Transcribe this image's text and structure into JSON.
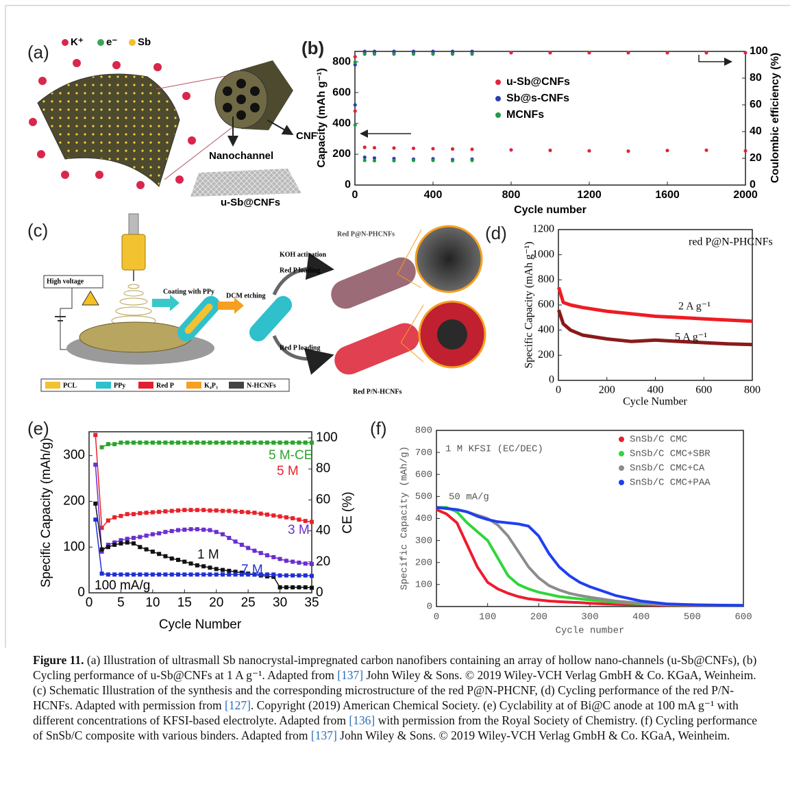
{
  "panels": {
    "a": {
      "label": "(a)",
      "legend": [
        "K⁺",
        "e⁻",
        "Sb"
      ],
      "labels": [
        "CNF",
        "Nanochannel",
        "u-Sb@CNFs"
      ]
    },
    "c": {
      "label": "(c)",
      "labels": [
        "High voltage",
        "Coating with PPy",
        "DCM etching",
        "KOH activation",
        "Red P loading",
        "Red P@N-PHCNFs",
        "Red P loading",
        "Red P/N-HCNFs"
      ],
      "legend": [
        "PCL",
        "PPy",
        "Red P",
        "K₄P₃",
        "N-HCNFs"
      ]
    }
  },
  "chart_data": [
    {
      "type": "scatter",
      "label": "(b)",
      "x_label": "Cycle number",
      "y_label": "Capacity (mAh g⁻¹)",
      "y2_label": "Coulombic efficiency (%)",
      "x": [
        1,
        50,
        100,
        200,
        300,
        400,
        500,
        600,
        800,
        1000,
        1200,
        1400,
        1600,
        1800,
        2000
      ],
      "xlim": [
        0,
        2000
      ],
      "xticks": [
        0,
        400,
        800,
        1200,
        1600,
        2000
      ],
      "ylim": [
        0,
        867
      ],
      "yticks": [
        0,
        200,
        400,
        600,
        800
      ],
      "y2lim": [
        0,
        100
      ],
      "y2ticks": [
        0,
        20,
        40,
        60,
        80,
        100
      ],
      "legend": "center",
      "grid": false,
      "series": [
        {
          "name": "u-Sb@CNFs",
          "color": "#e0253f",
          "values": [
            480,
            245,
            242,
            240,
            238,
            236,
            234,
            232,
            228,
            225,
            222,
            220,
            224,
            226,
            222
          ],
          "ce_values": [
            96,
            99,
            99,
            99,
            99,
            99,
            99,
            99,
            99,
            99,
            99,
            99,
            99,
            99,
            99
          ]
        },
        {
          "name": "Sb@s-CNFs",
          "color": "#2d3fa8",
          "values": [
            520,
            180,
            175,
            172,
            168,
            170,
            165,
            168,
            null,
            null,
            null,
            null,
            null,
            null,
            null
          ],
          "ce_values": [
            90,
            100,
            100,
            100,
            100,
            100,
            100,
            100,
            null,
            null,
            null,
            null,
            null,
            null,
            null
          ]
        },
        {
          "name": "MCNFs",
          "color": "#1f9a4a",
          "values": [
            390,
            160,
            158,
            158,
            160,
            160,
            158,
            160,
            null,
            null,
            null,
            null,
            null,
            null,
            null
          ],
          "ce_values": [
            92,
            98,
            98,
            98,
            98,
            98,
            98,
            98,
            null,
            null,
            null,
            null,
            null,
            null,
            null
          ]
        }
      ]
    },
    {
      "type": "line",
      "label": "(d)",
      "x_label": "Cycle Number",
      "y_label": "Specific Capacity (mAh g⁻¹)",
      "annotations": [
        "red P@N-PHCNFs"
      ],
      "x": [
        1,
        20,
        50,
        100,
        200,
        300,
        400,
        500,
        600,
        700,
        800
      ],
      "xlim": [
        0,
        800
      ],
      "xticks": [
        0,
        200,
        400,
        600,
        800
      ],
      "ylim": [
        0,
        1200
      ],
      "yticks": [
        0,
        200,
        400,
        600,
        800,
        1000,
        1200
      ],
      "legend": "inline",
      "grid": false,
      "series": [
        {
          "name": "2 A g⁻¹",
          "color": "#ee1c24",
          "values": [
            740,
            620,
            600,
            580,
            550,
            530,
            510,
            500,
            490,
            480,
            470
          ]
        },
        {
          "name": "5 A g⁻¹",
          "color": "#8b1a1a",
          "values": [
            560,
            450,
            400,
            360,
            330,
            310,
            320,
            310,
            300,
            290,
            285
          ]
        }
      ]
    },
    {
      "type": "line",
      "marker": "square",
      "label": "(e)",
      "x_label": "Cycle Number",
      "y_label": "Specific Capacity (mAh/g)",
      "y2_label": "CE (%)",
      "annotations": [
        "100 mA/g"
      ],
      "x": [
        1,
        2,
        3,
        4,
        5,
        6,
        7,
        8,
        9,
        10,
        11,
        12,
        13,
        14,
        15,
        16,
        17,
        18,
        19,
        20,
        21,
        22,
        23,
        24,
        25,
        26,
        27,
        28,
        29,
        30,
        31,
        32,
        33,
        34,
        35
      ],
      "xlim": [
        0,
        35
      ],
      "xticks": [
        0,
        5,
        10,
        15,
        20,
        25,
        30,
        35
      ],
      "ylim": [
        0,
        352
      ],
      "yticks": [
        0,
        100,
        200,
        300
      ],
      "y2lim": [
        0,
        104
      ],
      "y2ticks": [
        0,
        20,
        40,
        60,
        80,
        100
      ],
      "legend": "inline",
      "grid": false,
      "series": [
        {
          "name": "5 M",
          "color": "#e8222a",
          "values": [
            345,
            142,
            158,
            165,
            168,
            172,
            172,
            174,
            175,
            176,
            177,
            178,
            179,
            180,
            181,
            181,
            181,
            181,
            180,
            180,
            179,
            179,
            178,
            177,
            176,
            175,
            173,
            171,
            169,
            167,
            165,
            163,
            160,
            157,
            155
          ]
        },
        {
          "name": "3 M",
          "color": "#6a2fd0",
          "values": [
            280,
            90,
            105,
            110,
            115,
            118,
            120,
            122,
            125,
            128,
            130,
            133,
            135,
            137,
            138,
            139,
            139,
            138,
            137,
            133,
            128,
            120,
            112,
            105,
            98,
            92,
            87,
            82,
            78,
            74,
            70,
            68,
            66,
            64,
            63
          ]
        },
        {
          "name": "1 M",
          "color": "#111111",
          "values": [
            195,
            95,
            100,
            105,
            108,
            110,
            108,
            100,
            95,
            90,
            85,
            80,
            75,
            72,
            68,
            64,
            60,
            58,
            55,
            52,
            50,
            48,
            46,
            44,
            42,
            40,
            38,
            36,
            35,
            12,
            12,
            12,
            12,
            12,
            11
          ]
        },
        {
          "name": "7 M",
          "color": "#1f2fd6",
          "values": [
            160,
            42,
            40,
            40,
            40,
            40,
            40,
            40,
            40,
            40,
            40,
            40,
            40,
            40,
            40,
            40,
            40,
            40,
            40,
            40,
            40,
            40,
            40,
            40,
            40,
            40,
            40,
            40,
            40,
            38,
            38,
            38,
            38,
            38,
            37
          ]
        },
        {
          "name": "5 M-CE",
          "color": "#2aa52a",
          "axis": "y2",
          "values": [
            null,
            94,
            96,
            96,
            97,
            97,
            97,
            97,
            97,
            97,
            97,
            97,
            97,
            97,
            97,
            97,
            97,
            97,
            97,
            97,
            97,
            97,
            97,
            97,
            97,
            97,
            97,
            97,
            97,
            97,
            97,
            97,
            97,
            97,
            97
          ]
        }
      ]
    },
    {
      "type": "line",
      "label": "(f)",
      "x_label": "Cycle number",
      "y_label": "Specific Capacity (mAh/g)",
      "annotations": [
        "1 M KFSI (EC/DEC)",
        "50 mA/g"
      ],
      "x": [
        0,
        20,
        40,
        60,
        80,
        100,
        120,
        140,
        160,
        180,
        200,
        220,
        240,
        260,
        280,
        300,
        350,
        400,
        450,
        500,
        600
      ],
      "xlim": [
        0,
        600
      ],
      "xticks": [
        0,
        100,
        200,
        300,
        400,
        500,
        600
      ],
      "ylim": [
        0,
        800
      ],
      "yticks": [
        0,
        100,
        200,
        300,
        400,
        500,
        600,
        700,
        800
      ],
      "legend": "upper right",
      "grid": false,
      "series": [
        {
          "name": "SnSb/C CMC",
          "color": "#ee1c2e",
          "values": [
            440,
            420,
            380,
            280,
            180,
            110,
            80,
            60,
            45,
            35,
            30,
            25,
            22,
            20,
            18,
            15,
            10,
            8,
            6,
            5,
            5
          ]
        },
        {
          "name": "SnSb/C CMC+SBR",
          "color": "#2fd63a",
          "values": [
            450,
            450,
            430,
            380,
            340,
            300,
            220,
            140,
            100,
            80,
            65,
            55,
            45,
            40,
            35,
            30,
            20,
            12,
            8,
            6,
            5
          ]
        },
        {
          "name": "SnSb/C CMC+CA",
          "color": "#8c8c8c",
          "values": [
            450,
            445,
            440,
            430,
            415,
            400,
            370,
            320,
            250,
            180,
            130,
            95,
            75,
            60,
            50,
            42,
            25,
            15,
            10,
            6,
            5
          ]
        },
        {
          "name": "SnSb/C CMC+PAA",
          "color": "#1f3ff0",
          "values": [
            450,
            445,
            440,
            430,
            410,
            395,
            385,
            380,
            375,
            365,
            320,
            240,
            180,
            140,
            110,
            90,
            50,
            25,
            12,
            8,
            5
          ]
        }
      ]
    }
  ],
  "caption": {
    "label": "Figure 11.",
    "parts": [
      " (a) Illustration of ultrasmall Sb nanocrystal-impregnated carbon nanofibers containing an array of hollow nano-channels (u-Sb@CNFs), (b) Cycling performance of u-Sb@CNFs at 1 A g⁻¹. Adapted from ",
      {
        "ref": "[137]"
      },
      " John Wiley & Sons. © 2019 Wiley-VCH Verlag GmbH & Co. KGaA, Weinheim. (c) Schematic Illustration of the synthesis and the corresponding microstructure of the red P@N-PHCNF, (d) Cycling performance of the red P/N-HCNFs. Adapted with permission from ",
      {
        "ref": "[127]"
      },
      ". Copyright (2019) American Chemical Society. (e) Cyclability at of Bi@C anode at 100 mA g⁻¹ with different concentrations of KFSI-based electrolyte. Adapted from ",
      {
        "ref": "[136]"
      },
      " with permission from the Royal Society of Chemistry. (f) Cycling performance of SnSb/C composite with various binders. Adapted from ",
      {
        "ref": "[137]"
      },
      " John Wiley & Sons. © 2019 Wiley-VCH Verlag GmbH & Co. KGaA, Weinheim."
    ]
  }
}
